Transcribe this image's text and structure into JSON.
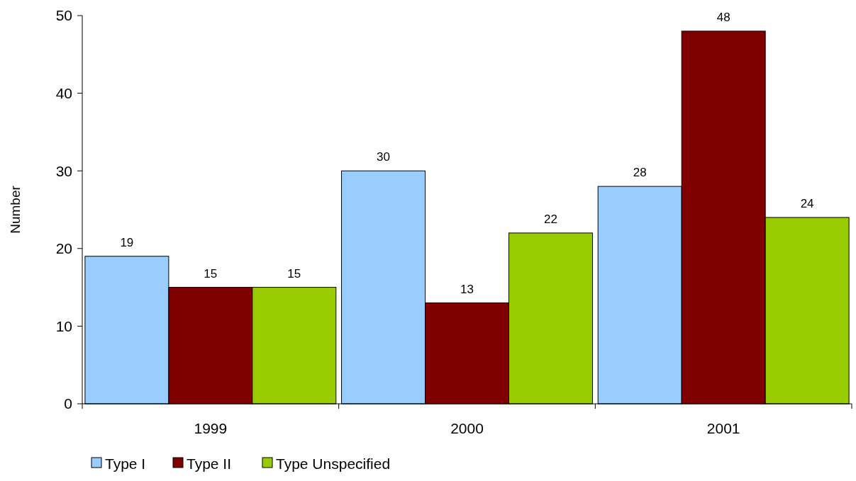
{
  "chart_data": {
    "type": "bar",
    "ylabel": "Number",
    "categories": [
      "1999",
      "2000",
      "2001"
    ],
    "series": [
      {
        "name": "Type I",
        "color": "#99ccff",
        "values": [
          19,
          30,
          28
        ]
      },
      {
        "name": "Type II",
        "color": "#800000",
        "values": [
          15,
          13,
          48
        ]
      },
      {
        "name": "Type Unspecified",
        "color": "#99cc00",
        "values": [
          15,
          22,
          24
        ]
      }
    ],
    "ylim": [
      0,
      50
    ],
    "yticks": [
      0,
      10,
      20,
      30,
      40,
      50
    ],
    "grid": false,
    "legend": "bottom",
    "data_labels": true
  }
}
